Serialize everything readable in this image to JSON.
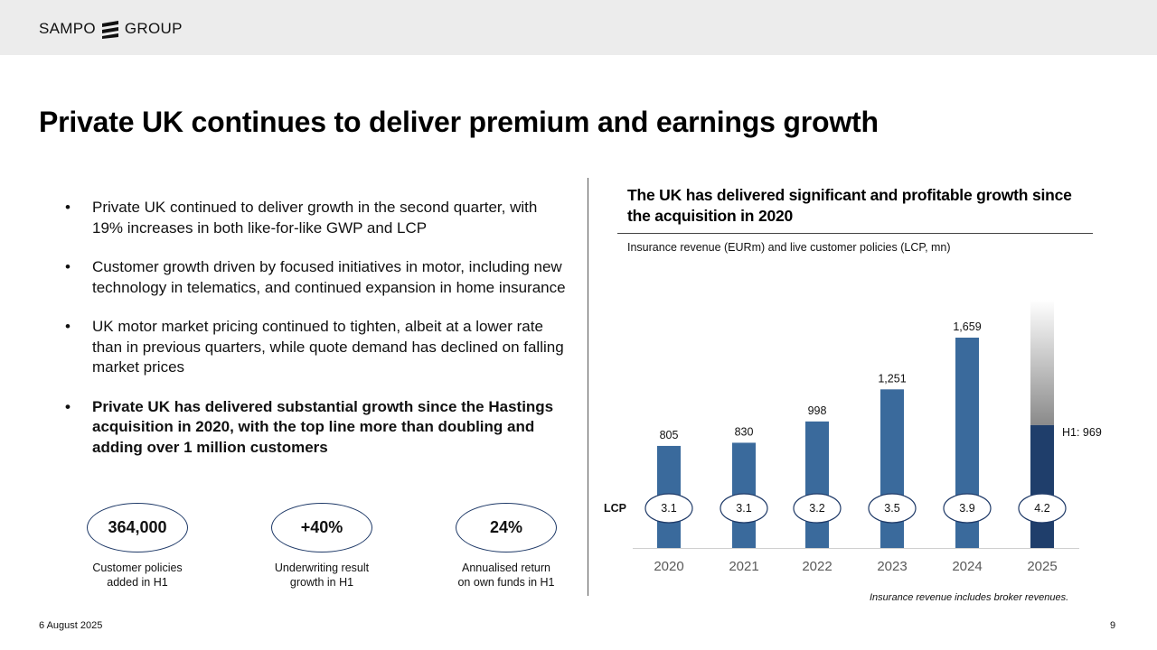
{
  "header": {
    "logo_left": "SAMPO",
    "logo_right": "GROUP"
  },
  "title": "Private UK continues to deliver premium and earnings growth",
  "bullets": [
    {
      "text": "Private UK continued to deliver growth in the second quarter, with 19% increases in both like-for-like GWP and LCP",
      "bold": false
    },
    {
      "text": "Customer growth driven by focused initiatives in motor, including new technology in telematics, and continued expansion in home insurance",
      "bold": false
    },
    {
      "text": "UK motor market pricing continued to tighten, albeit at a lower rate than in previous quarters, while quote demand has declined on falling market prices",
      "bold": false
    },
    {
      "text": "Private UK has delivered substantial growth since the Hastings acquisition in 2020, with the top line more than doubling and adding over 1 million customers",
      "bold": true
    }
  ],
  "kpis": [
    {
      "value": "364,000",
      "caption_line1": "Customer policies",
      "caption_line2": "added in H1"
    },
    {
      "value": "+40%",
      "caption_line1": "Underwriting result",
      "caption_line2": "growth in H1"
    },
    {
      "value": "24%",
      "caption_line1": "Annualised return",
      "caption_line2": "on own funds in H1"
    }
  ],
  "chart_heading": "The UK has delivered significant and profitable growth since the acquisition in 2020",
  "chart_subtitle": "Insurance revenue (EURm) and live customer policies (LCP, mn)",
  "footnote": "Insurance revenue includes broker revenues.",
  "footer": {
    "date": "6 August 2025",
    "page": "9"
  },
  "colors": {
    "bar": "#3a6a9c",
    "bar_current": "#1f3e6b",
    "oval_border": "#1f3a68",
    "topbar": "#ececec"
  },
  "chart_data": {
    "type": "bar",
    "title": "The UK has delivered significant and profitable growth since the acquisition in 2020",
    "subtitle": "Insurance revenue (EURm) and live customer policies (LCP, mn)",
    "categories": [
      "2020",
      "2021",
      "2022",
      "2023",
      "2024",
      "2025"
    ],
    "series": [
      {
        "name": "Insurance revenue (EURm)",
        "values": [
          805,
          830,
          998,
          1251,
          1659,
          969
        ],
        "labels": [
          "805",
          "830",
          "998",
          "1,251",
          "1,659",
          "H1: 969"
        ]
      }
    ],
    "lcp_label": "LCP",
    "lcp_values": [
      "3.1",
      "3.1",
      "3.2",
      "3.5",
      "3.9",
      "4.2"
    ],
    "annotation": "H1: 969",
    "ylim": [
      0,
      1800
    ],
    "grid": false
  }
}
